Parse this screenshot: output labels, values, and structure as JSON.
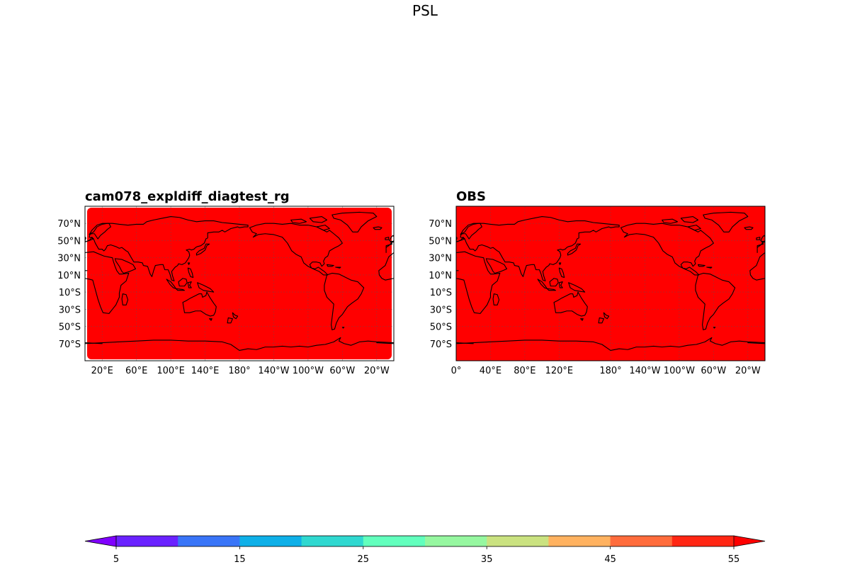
{
  "figure": {
    "title": "PSL"
  },
  "chart_data": [
    {
      "type": "heatmap",
      "title": "cam078_expldiff_diagtest_rg",
      "central_longitude": 180,
      "field_value_note": "uniform >55 (extend color)",
      "field_color": "#ff0000",
      "yticks": [
        {
          "lat": 70,
          "label": "70°N"
        },
        {
          "lat": 50,
          "label": "50°N"
        },
        {
          "lat": 30,
          "label": "30°N"
        },
        {
          "lat": 10,
          "label": "10°N"
        },
        {
          "lat": -10,
          "label": "10°S"
        },
        {
          "lat": -30,
          "label": "30°S"
        },
        {
          "lat": -50,
          "label": "50°S"
        },
        {
          "lat": -70,
          "label": "70°S"
        }
      ],
      "xticks": [
        {
          "lon": 20,
          "label": "20°E"
        },
        {
          "lon": 60,
          "label": "60°E"
        },
        {
          "lon": 100,
          "label": "100°E"
        },
        {
          "lon": 140,
          "label": "140°E"
        },
        {
          "lon": 180,
          "label": "180°"
        },
        {
          "lon": 220,
          "label": "140°W"
        },
        {
          "lon": 260,
          "label": "100°W"
        },
        {
          "lon": 300,
          "label": "60°W"
        },
        {
          "lon": 340,
          "label": "20°W"
        }
      ],
      "xlim": [
        0,
        360
      ],
      "ylim": [
        -90,
        90
      ],
      "grid": true
    },
    {
      "type": "heatmap",
      "title": "OBS",
      "central_longitude": 180,
      "field_value_note": "uniform >55 (extend color)",
      "field_color": "#ff0000",
      "yticks": [
        {
          "lat": 70,
          "label": "70°N"
        },
        {
          "lat": 50,
          "label": "50°N"
        },
        {
          "lat": 30,
          "label": "30°N"
        },
        {
          "lat": 10,
          "label": "10°N"
        },
        {
          "lat": -10,
          "label": "10°S"
        },
        {
          "lat": -30,
          "label": "30°S"
        },
        {
          "lat": -50,
          "label": "50°S"
        },
        {
          "lat": -70,
          "label": "70°S"
        }
      ],
      "xticks": [
        {
          "lon": 0,
          "label": "0°"
        },
        {
          "lon": 40,
          "label": "40°E"
        },
        {
          "lon": 80,
          "label": "80°E"
        },
        {
          "lon": 120,
          "label": "120°E"
        },
        {
          "lon": 180,
          "label": "180°"
        },
        {
          "lon": 220,
          "label": "140°W"
        },
        {
          "lon": 260,
          "label": "100°W"
        },
        {
          "lon": 300,
          "label": "60°W"
        },
        {
          "lon": 340,
          "label": "20°W"
        }
      ],
      "xlim": [
        0,
        360
      ],
      "ylim": [
        -90,
        90
      ],
      "grid": true
    }
  ],
  "colorbar": {
    "levels": [
      5,
      10,
      15,
      20,
      25,
      30,
      35,
      40,
      45,
      50,
      55
    ],
    "colors": [
      "#6a22ff",
      "#3975f8",
      "#0fb0e8",
      "#2fd8d0",
      "#62ffbd",
      "#96f7a0",
      "#cae280",
      "#ffb260",
      "#ff6c3c",
      "#ff2613"
    ],
    "under_color": "#8000ff",
    "over_color": "#ff0000",
    "tick_values": [
      5,
      15,
      25,
      35,
      45,
      55
    ],
    "tick_labels": [
      "5",
      "15",
      "25",
      "35",
      "45",
      "55"
    ],
    "extend": "both"
  }
}
